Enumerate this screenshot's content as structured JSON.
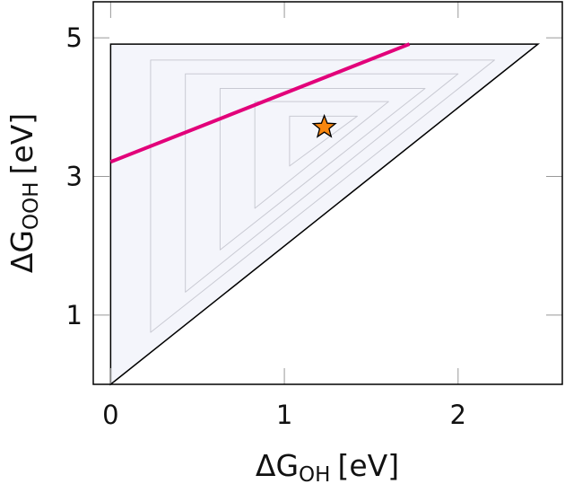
{
  "chart_data": {
    "type": "area",
    "title": "",
    "xlabel": {
      "symbol": "ΔG",
      "subscript": "OH",
      "unit": "[eV]"
    },
    "ylabel": {
      "symbol": "ΔG",
      "subscript": "OOH",
      "unit": "[eV]"
    },
    "xlim": [
      -0.1,
      2.6
    ],
    "ylim": [
      0,
      5.52
    ],
    "xticks": [
      {
        "value": 0,
        "label": "0"
      },
      {
        "value": 1,
        "label": "1"
      },
      {
        "value": 2,
        "label": "2"
      }
    ],
    "yticks": [
      {
        "value": 1,
        "label": "1"
      },
      {
        "value": 3,
        "label": "3"
      },
      {
        "value": 5,
        "label": "5"
      }
    ],
    "grid": false,
    "region": {
      "vertices": [
        [
          0,
          0
        ],
        [
          0,
          4.91
        ],
        [
          2.46,
          4.91
        ]
      ],
      "fill": "#f4f5fb",
      "stroke": "#000000"
    },
    "contours": [
      {
        "x0": 0.23,
        "y_bottom": 0.75,
        "y_top": 4.68,
        "x_right": 2.21
      },
      {
        "x0": 0.43,
        "y_bottom": 1.33,
        "y_top": 4.48,
        "x_right": 2.0
      },
      {
        "x0": 0.63,
        "y_bottom": 1.94,
        "y_top": 4.27,
        "x_right": 1.81
      },
      {
        "x0": 0.83,
        "y_bottom": 2.54,
        "y_top": 4.08,
        "x_right": 1.6
      },
      {
        "x0": 1.03,
        "y_bottom": 3.15,
        "y_top": 3.87,
        "x_right": 1.42
      }
    ],
    "contour_color": "#c9cad3",
    "line": {
      "x": [
        0,
        1.72
      ],
      "y": [
        3.21,
        4.91
      ],
      "color": "#e2007a"
    },
    "marker": {
      "x": 1.23,
      "y": 3.71,
      "shape": "star",
      "color": "#f7860f"
    }
  }
}
